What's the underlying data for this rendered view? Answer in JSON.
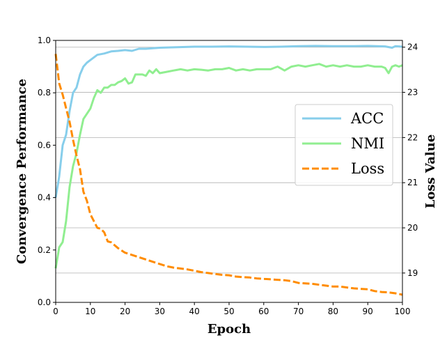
{
  "chart_data": {
    "type": "line",
    "title": "",
    "xlabel": "Epoch",
    "ylabel_left": "Convergence Performance",
    "ylabel_right": "Loss Value",
    "xlim": [
      0,
      100
    ],
    "ylim_left": [
      0.0,
      1.0
    ],
    "ylim_right": [
      18.35,
      24.15
    ],
    "x_ticks": [
      0,
      10,
      20,
      30,
      40,
      50,
      60,
      70,
      80,
      90,
      100
    ],
    "y_left_ticks": [
      0.0,
      0.2,
      0.4,
      0.6,
      0.8,
      1.0
    ],
    "y_right_ticks": [
      19,
      20,
      21,
      22,
      23,
      24
    ],
    "grid": "horizontal lines at right-axis ticks",
    "legend_position": "center-right",
    "series": [
      {
        "name": "ACC",
        "axis": "left",
        "color": "#87CEEB",
        "style": "solid",
        "x": [
          0,
          1,
          2,
          3,
          4,
          5,
          6,
          7,
          8,
          9,
          10,
          12,
          14,
          16,
          18,
          20,
          22,
          24,
          26,
          28,
          30,
          35,
          40,
          45,
          50,
          55,
          60,
          65,
          70,
          75,
          80,
          85,
          90,
          95,
          97,
          98,
          100
        ],
        "values": [
          0.4,
          0.48,
          0.6,
          0.64,
          0.73,
          0.8,
          0.82,
          0.87,
          0.9,
          0.915,
          0.925,
          0.945,
          0.95,
          0.958,
          0.96,
          0.963,
          0.96,
          0.968,
          0.968,
          0.97,
          0.972,
          0.974,
          0.976,
          0.976,
          0.977,
          0.976,
          0.975,
          0.976,
          0.978,
          0.979,
          0.978,
          0.978,
          0.979,
          0.977,
          0.972,
          0.978,
          0.976
        ]
      },
      {
        "name": "NMI",
        "axis": "left",
        "color": "#90EE90",
        "style": "solid",
        "x": [
          0,
          1,
          2,
          3,
          4,
          5,
          6,
          7,
          8,
          9,
          10,
          11,
          12,
          13,
          14,
          15,
          16,
          17,
          18,
          19,
          20,
          21,
          22,
          23,
          24,
          25,
          26,
          27,
          28,
          29,
          30,
          32,
          34,
          36,
          38,
          40,
          42,
          44,
          46,
          48,
          50,
          52,
          54,
          56,
          58,
          60,
          62,
          64,
          66,
          68,
          70,
          72,
          74,
          76,
          78,
          80,
          82,
          84,
          86,
          88,
          90,
          92,
          94,
          95,
          96,
          97,
          98,
          99,
          100
        ],
        "values": [
          0.13,
          0.21,
          0.23,
          0.31,
          0.44,
          0.52,
          0.57,
          0.64,
          0.7,
          0.72,
          0.74,
          0.78,
          0.81,
          0.8,
          0.82,
          0.82,
          0.83,
          0.83,
          0.84,
          0.845,
          0.855,
          0.835,
          0.84,
          0.87,
          0.87,
          0.87,
          0.865,
          0.885,
          0.875,
          0.89,
          0.875,
          0.88,
          0.885,
          0.89,
          0.885,
          0.89,
          0.888,
          0.885,
          0.89,
          0.89,
          0.895,
          0.885,
          0.89,
          0.885,
          0.89,
          0.89,
          0.89,
          0.9,
          0.885,
          0.9,
          0.905,
          0.9,
          0.905,
          0.91,
          0.9,
          0.905,
          0.9,
          0.905,
          0.9,
          0.9,
          0.905,
          0.9,
          0.9,
          0.895,
          0.875,
          0.9,
          0.905,
          0.9,
          0.905
        ]
      },
      {
        "name": "Loss",
        "axis": "right",
        "color": "#FF8C00",
        "style": "dashed",
        "x": [
          0,
          1,
          2,
          3,
          4,
          5,
          6,
          7,
          8,
          9,
          10,
          11,
          12,
          13,
          14,
          15,
          16,
          18,
          20,
          22,
          24,
          26,
          28,
          30,
          32,
          34,
          36,
          38,
          40,
          42,
          44,
          46,
          48,
          50,
          52,
          54,
          56,
          58,
          60,
          62,
          64,
          66,
          68,
          70,
          72,
          74,
          76,
          78,
          80,
          82,
          84,
          86,
          88,
          90,
          92,
          94,
          96,
          98,
          100
        ],
        "values": [
          23.85,
          23.2,
          22.95,
          22.65,
          22.35,
          21.95,
          21.6,
          21.3,
          20.8,
          20.6,
          20.3,
          20.15,
          20.0,
          19.98,
          19.9,
          19.7,
          19.68,
          19.55,
          19.45,
          19.4,
          19.35,
          19.3,
          19.25,
          19.2,
          19.15,
          19.12,
          19.1,
          19.08,
          19.05,
          19.02,
          19.0,
          18.98,
          18.96,
          18.95,
          18.92,
          18.91,
          18.9,
          18.88,
          18.87,
          18.86,
          18.85,
          18.84,
          18.82,
          18.78,
          18.77,
          18.76,
          18.74,
          18.72,
          18.7,
          18.7,
          18.68,
          18.66,
          18.65,
          18.64,
          18.6,
          18.58,
          18.57,
          18.55,
          18.52
        ]
      }
    ]
  }
}
